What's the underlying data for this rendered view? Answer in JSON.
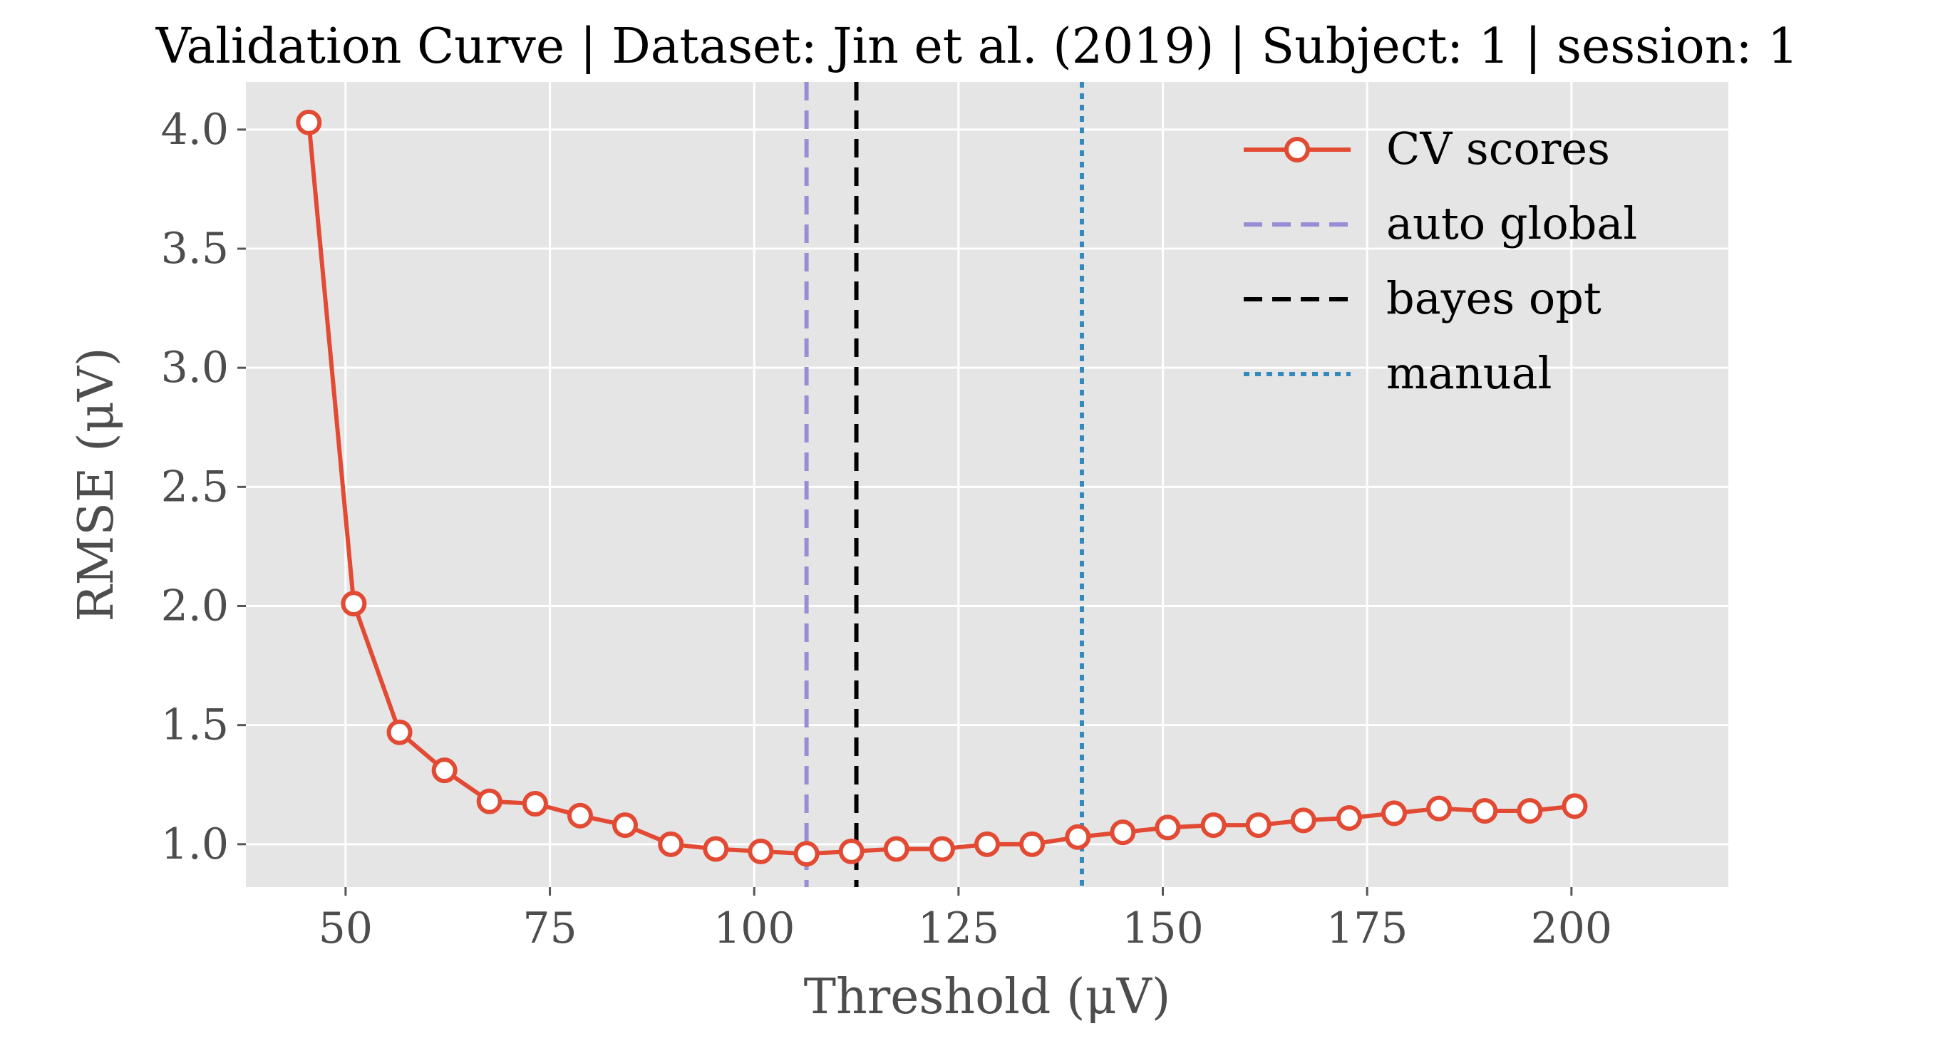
{
  "chart_data": {
    "type": "line",
    "title": "Validation Curve | Dataset: Jin et al. (2019) | Subject: 1 | session: 1",
    "xlabel": "Threshold (μV)",
    "ylabel": "RMSE (μV)",
    "xlim": [
      37.8,
      219.2
    ],
    "ylim": [
      0.82,
      4.2
    ],
    "xticks": [
      50,
      75,
      100,
      125,
      150,
      175,
      200
    ],
    "xtick_labels": [
      "50",
      "75",
      "100",
      "125",
      "150",
      "175",
      "200"
    ],
    "yticks": [
      1.0,
      1.5,
      2.0,
      2.5,
      3.0,
      3.5,
      4.0
    ],
    "ytick_labels": [
      "1.0",
      "1.5",
      "2.0",
      "2.5",
      "3.0",
      "3.5",
      "4.0"
    ],
    "grid": true,
    "legend_position": "top-right",
    "series": [
      {
        "name": "CV scores",
        "color": "#e24a33",
        "marker": "circle-hollow",
        "x": [
          45.5,
          51.0,
          56.6,
          62.1,
          67.6,
          73.2,
          78.7,
          84.2,
          89.8,
          95.3,
          100.8,
          106.4,
          111.9,
          117.4,
          123.0,
          128.5,
          134.0,
          139.6,
          145.1,
          150.6,
          156.2,
          161.7,
          167.2,
          172.8,
          178.3,
          183.8,
          189.4,
          194.9,
          200.4
        ],
        "y": [
          4.03,
          2.01,
          1.47,
          1.31,
          1.18,
          1.17,
          1.12,
          1.08,
          1.0,
          0.98,
          0.97,
          0.96,
          0.97,
          0.98,
          0.98,
          1.0,
          1.0,
          1.03,
          1.05,
          1.07,
          1.08,
          1.08,
          1.1,
          1.11,
          1.13,
          1.15,
          1.14,
          1.14,
          1.16
        ]
      }
    ],
    "vlines": [
      {
        "name": "auto global",
        "x": 106.4,
        "color": "#988ed5",
        "style": "dashed"
      },
      {
        "name": "bayes opt",
        "x": 112.5,
        "color": "#000000",
        "style": "dashed"
      },
      {
        "name": "manual",
        "x": 140.1,
        "color": "#348abd",
        "style": "dotted"
      }
    ]
  }
}
